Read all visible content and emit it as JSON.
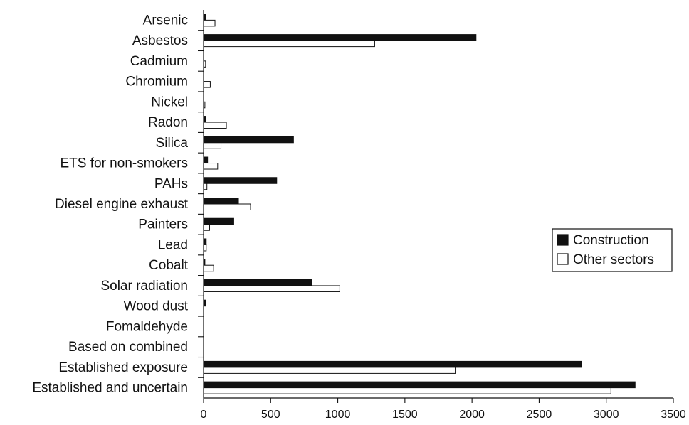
{
  "chart_data": {
    "type": "bar",
    "orientation": "horizontal",
    "title": "",
    "xlabel": "",
    "ylabel": "",
    "xlim": [
      0,
      3500
    ],
    "xticks": [
      0,
      500,
      1000,
      1500,
      2000,
      2500,
      3000,
      3500
    ],
    "grid": false,
    "legend_position": "right",
    "categories": [
      "Arsenic",
      "Asbestos",
      "Cadmium",
      "Chromium",
      "Nickel",
      "Radon",
      "Silica",
      "ETS for non-smokers",
      "PAHs",
      "Diesel engine exhaust",
      "Painters",
      "Lead",
      "Cobalt",
      "Solar radiation",
      "Wood dust",
      "Fomaldehyde",
      "Based on combined",
      "Established exposure",
      "Established and uncertain"
    ],
    "series": [
      {
        "name": "Construction",
        "color": "#111111",
        "values": [
          15,
          2030,
          0,
          0,
          0,
          15,
          670,
          30,
          545,
          260,
          225,
          20,
          10,
          805,
          15,
          0,
          0,
          2815,
          3215
        ]
      },
      {
        "name": "Other sectors",
        "color": "#ffffff",
        "values": [
          85,
          1275,
          15,
          50,
          10,
          170,
          130,
          105,
          25,
          350,
          45,
          20,
          75,
          1015,
          0,
          0,
          0,
          1875,
          3035
        ]
      }
    ]
  }
}
